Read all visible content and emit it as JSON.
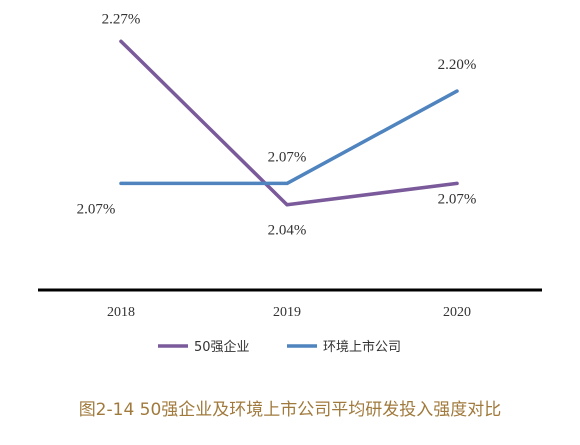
{
  "caption": "图2-14 50强企业及环境上市公司平均研发投入强度对比",
  "chart_data": {
    "type": "line",
    "title": "",
    "xlabel": "",
    "ylabel": "",
    "categories": [
      "2018",
      "2019",
      "2020"
    ],
    "series": [
      {
        "name": "50强企业",
        "values": [
          2.27,
          2.04,
          2.07
        ],
        "labels": [
          "2.27%",
          "2.04%",
          "2.07%"
        ],
        "color": "#7a5a9a"
      },
      {
        "name": "环境上市公司",
        "values": [
          2.07,
          2.07,
          2.2
        ],
        "labels": [
          "2.07%",
          "2.07%",
          "2.20%"
        ],
        "color": "#4f84bf"
      }
    ],
    "ylim": [
      1.92,
      2.3
    ],
    "grid": false,
    "legend": "bottom"
  }
}
